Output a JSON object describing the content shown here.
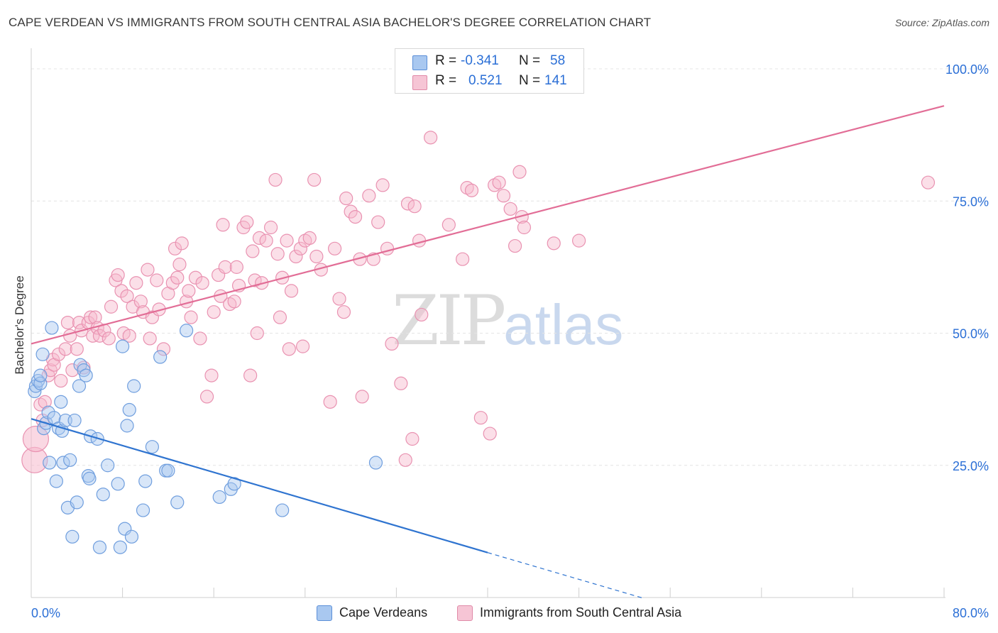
{
  "title": "CAPE VERDEAN VS IMMIGRANTS FROM SOUTH CENTRAL ASIA BACHELOR'S DEGREE CORRELATION CHART",
  "source": "Source: ZipAtlas.com",
  "watermark": {
    "zip": "ZIP",
    "atlas": "atlas"
  },
  "colors": {
    "blue": "#2f74d0",
    "pink": "#e26d96",
    "blue_fill": "#a9c8f0",
    "pink_fill": "#f6b8cc",
    "axis_text": "#2b6fd6",
    "grid": "#e4e4e4"
  },
  "legend": {
    "rows": [
      {
        "r_label": "R =",
        "r_value": "-0.341",
        "n_label": "N =",
        "n_value": "58"
      },
      {
        "r_label": "R =",
        "r_value": "0.521",
        "n_label": "N =",
        "n_value": "141"
      }
    ]
  },
  "bottom_legend": [
    "Cape Verdeans",
    "Immigrants from South Central Asia"
  ],
  "chart_data": {
    "type": "scatter",
    "title": "CAPE VERDEAN VS IMMIGRANTS FROM SOUTH CENTRAL ASIA BACHELOR'S DEGREE CORRELATION CHART",
    "xlabel": "",
    "ylabel": "Bachelor's Degree",
    "xlim": [
      0,
      80
    ],
    "ylim": [
      0,
      100
    ],
    "x_tick_labels": [
      "0.0%",
      "80.0%"
    ],
    "y_tick_labels": [
      "100.0%",
      "75.0%",
      "50.0%",
      "25.0%"
    ],
    "y_ticks": [
      100,
      75,
      50,
      25
    ],
    "series": [
      {
        "name": "Cape Verdeans",
        "color": "#2f74d0",
        "trend": {
          "x0": 0,
          "y0": 33.8,
          "x1": 40,
          "y1": 8.5,
          "dashed_to_x": 53.5
        },
        "points": [
          [
            0.3,
            39
          ],
          [
            0.4,
            40
          ],
          [
            0.6,
            41
          ],
          [
            0.8,
            40.5
          ],
          [
            0.8,
            42
          ],
          [
            1,
            46
          ],
          [
            1.1,
            32
          ],
          [
            1.3,
            33
          ],
          [
            1.5,
            35
          ],
          [
            1.6,
            25.5
          ],
          [
            1.8,
            51
          ],
          [
            2.0,
            34
          ],
          [
            2.2,
            22
          ],
          [
            2.4,
            32
          ],
          [
            2.6,
            37
          ],
          [
            2.7,
            31.5
          ],
          [
            2.8,
            25.5
          ],
          [
            3.0,
            33.5
          ],
          [
            3.2,
            17
          ],
          [
            3.4,
            26
          ],
          [
            3.6,
            11.5
          ],
          [
            3.8,
            33.5
          ],
          [
            4.0,
            18
          ],
          [
            4.2,
            40
          ],
          [
            4.3,
            44
          ],
          [
            4.6,
            43
          ],
          [
            4.8,
            42
          ],
          [
            5.0,
            23
          ],
          [
            5.1,
            22.5
          ],
          [
            5.2,
            30.5
          ],
          [
            5.8,
            30
          ],
          [
            6.0,
            9.5
          ],
          [
            6.3,
            19.5
          ],
          [
            6.7,
            25
          ],
          [
            7.6,
            21.5
          ],
          [
            7.8,
            9.5
          ],
          [
            8.0,
            47.5
          ],
          [
            8.2,
            13
          ],
          [
            8.4,
            32.5
          ],
          [
            8.6,
            35.5
          ],
          [
            8.8,
            11.5
          ],
          [
            9.0,
            40
          ],
          [
            9.8,
            16.5
          ],
          [
            10,
            22
          ],
          [
            10.6,
            28.5
          ],
          [
            11.3,
            45.5
          ],
          [
            11.8,
            24
          ],
          [
            12.0,
            24
          ],
          [
            12.8,
            18
          ],
          [
            13.6,
            50.5
          ],
          [
            16.5,
            19
          ],
          [
            17.5,
            20.5
          ],
          [
            17.8,
            21.5
          ],
          [
            22,
            16.5
          ],
          [
            30.2,
            25.5
          ]
        ]
      },
      {
        "name": "Immigrants from South Central Asia",
        "color": "#e26d96",
        "trend": {
          "x0": 0,
          "y0": 48,
          "x1": 80,
          "y1": 93
        },
        "points": [
          [
            0.3,
            26
          ],
          [
            0.4,
            30
          ],
          [
            0.8,
            36.5
          ],
          [
            1.0,
            33.5
          ],
          [
            1.2,
            37
          ],
          [
            1.5,
            42
          ],
          [
            1.7,
            43
          ],
          [
            1.9,
            45
          ],
          [
            2.0,
            44
          ],
          [
            2.4,
            46
          ],
          [
            2.6,
            41
          ],
          [
            3.0,
            47
          ],
          [
            3.2,
            52
          ],
          [
            3.4,
            49.5
          ],
          [
            3.6,
            43
          ],
          [
            4.0,
            47
          ],
          [
            4.2,
            52
          ],
          [
            4.4,
            50.5
          ],
          [
            4.6,
            43.5
          ],
          [
            5.0,
            52
          ],
          [
            5.2,
            53
          ],
          [
            5.4,
            49.5
          ],
          [
            5.6,
            53
          ],
          [
            5.8,
            51
          ],
          [
            6.0,
            49.5
          ],
          [
            6.4,
            50.5
          ],
          [
            6.8,
            49
          ],
          [
            7.0,
            55
          ],
          [
            7.4,
            60
          ],
          [
            7.6,
            61
          ],
          [
            7.9,
            58
          ],
          [
            8.1,
            50
          ],
          [
            8.4,
            57
          ],
          [
            8.6,
            49.5
          ],
          [
            8.9,
            55
          ],
          [
            9.2,
            59.5
          ],
          [
            9.6,
            56
          ],
          [
            9.8,
            54
          ],
          [
            10.2,
            62
          ],
          [
            10.4,
            49
          ],
          [
            10.6,
            53
          ],
          [
            11.0,
            60
          ],
          [
            11.2,
            54.5
          ],
          [
            11.6,
            47
          ],
          [
            12.0,
            57.5
          ],
          [
            12.4,
            59.5
          ],
          [
            12.6,
            66
          ],
          [
            12.8,
            60.5
          ],
          [
            13.0,
            63
          ],
          [
            13.2,
            67
          ],
          [
            13.6,
            56
          ],
          [
            13.8,
            58
          ],
          [
            14.0,
            53
          ],
          [
            14.4,
            60.5
          ],
          [
            14.8,
            49
          ],
          [
            15.0,
            59.5
          ],
          [
            15.4,
            38
          ],
          [
            15.8,
            42
          ],
          [
            16.0,
            54
          ],
          [
            16.4,
            61
          ],
          [
            16.6,
            57
          ],
          [
            16.8,
            70.5
          ],
          [
            17.0,
            62.5
          ],
          [
            17.4,
            55.5
          ],
          [
            17.8,
            56
          ],
          [
            18.0,
            62.5
          ],
          [
            18.2,
            59
          ],
          [
            18.6,
            70
          ],
          [
            18.9,
            71
          ],
          [
            19.2,
            42
          ],
          [
            19.4,
            65.5
          ],
          [
            19.6,
            60
          ],
          [
            19.8,
            50
          ],
          [
            20.0,
            68
          ],
          [
            20.2,
            59.5
          ],
          [
            20.6,
            67.5
          ],
          [
            21.0,
            70
          ],
          [
            21.4,
            79
          ],
          [
            21.6,
            65
          ],
          [
            21.8,
            53
          ],
          [
            22.0,
            60.5
          ],
          [
            22.4,
            67.5
          ],
          [
            22.6,
            47
          ],
          [
            22.8,
            58
          ],
          [
            23.2,
            64.5
          ],
          [
            23.6,
            66
          ],
          [
            23.8,
            47.5
          ],
          [
            24.0,
            67.5
          ],
          [
            24.4,
            68
          ],
          [
            24.8,
            79
          ],
          [
            25.0,
            64.5
          ],
          [
            25.4,
            62
          ],
          [
            26.2,
            37
          ],
          [
            26.6,
            66
          ],
          [
            27.0,
            56.5
          ],
          [
            27.4,
            54
          ],
          [
            27.6,
            75.5
          ],
          [
            28.0,
            73
          ],
          [
            28.4,
            72
          ],
          [
            28.8,
            64
          ],
          [
            29.0,
            38
          ],
          [
            29.6,
            76
          ],
          [
            30.0,
            64
          ],
          [
            30.4,
            71
          ],
          [
            30.8,
            78
          ],
          [
            31.2,
            66
          ],
          [
            31.6,
            48
          ],
          [
            32.4,
            40.5
          ],
          [
            32.8,
            26
          ],
          [
            33.0,
            74.5
          ],
          [
            33.4,
            30
          ],
          [
            33.6,
            74
          ],
          [
            34.0,
            67.5
          ],
          [
            34.2,
            53.5
          ],
          [
            35.0,
            87
          ],
          [
            36.6,
            70.5
          ],
          [
            37.8,
            64
          ],
          [
            38.2,
            77.5
          ],
          [
            38.6,
            77
          ],
          [
            39.4,
            34
          ],
          [
            40.2,
            31
          ],
          [
            40.6,
            78
          ],
          [
            41.0,
            78.5
          ],
          [
            41.4,
            76
          ],
          [
            42.0,
            73.5
          ],
          [
            42.4,
            66.5
          ],
          [
            42.8,
            80.5
          ],
          [
            43.0,
            72
          ],
          [
            43.2,
            70
          ],
          [
            45.8,
            67
          ],
          [
            48.0,
            67.5
          ],
          [
            78.6,
            78.5
          ]
        ]
      }
    ]
  }
}
